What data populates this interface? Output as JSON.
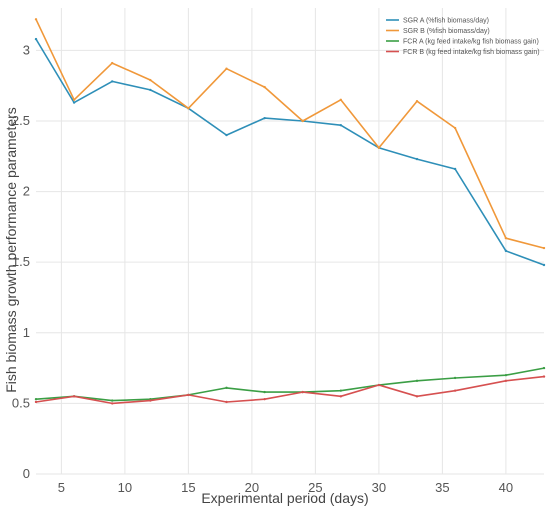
{
  "chart_data": {
    "type": "line",
    "xlabel": "Experimental period (days)",
    "ylabel": "Fish biomass growth performance parameters",
    "xlim": [
      3,
      43
    ],
    "ylim": [
      0,
      3.3
    ],
    "xticks": [
      5,
      10,
      15,
      20,
      25,
      30,
      35,
      40
    ],
    "yticks": [
      0,
      0.5,
      1,
      1.5,
      2,
      2.5,
      3
    ],
    "grid": true,
    "legend_position": "top-right",
    "x": [
      3,
      6,
      9,
      12,
      15,
      18,
      21,
      24,
      27,
      30,
      33,
      36,
      40,
      43
    ],
    "series": [
      {
        "name": "SGR A  (%fish biomass/day)",
        "color": "#2e8fb8",
        "values": [
          3.08,
          2.63,
          2.78,
          2.72,
          2.59,
          2.4,
          2.52,
          2.5,
          2.47,
          2.31,
          2.23,
          2.16,
          1.58,
          1.48
        ]
      },
      {
        "name": "SGR B  (%fish biomass/day)",
        "color": "#f0983a",
        "values": [
          3.22,
          2.65,
          2.91,
          2.79,
          2.59,
          2.87,
          2.74,
          2.5,
          2.65,
          2.31,
          2.64,
          2.45,
          1.67,
          1.6
        ]
      },
      {
        "name": "FCR A  (kg feed intake/kg fish biomass gain)",
        "color": "#3b9e45",
        "values": [
          0.53,
          0.55,
          0.52,
          0.53,
          0.56,
          0.61,
          0.58,
          0.58,
          0.59,
          0.63,
          0.66,
          0.68,
          0.7,
          0.75
        ]
      },
      {
        "name": "FCR B  (kg feed intake/kg fish biomass gain)",
        "color": "#d65050",
        "values": [
          0.51,
          0.55,
          0.5,
          0.52,
          0.56,
          0.51,
          0.53,
          0.58,
          0.55,
          0.63,
          0.55,
          0.59,
          0.66,
          0.69
        ]
      }
    ]
  }
}
